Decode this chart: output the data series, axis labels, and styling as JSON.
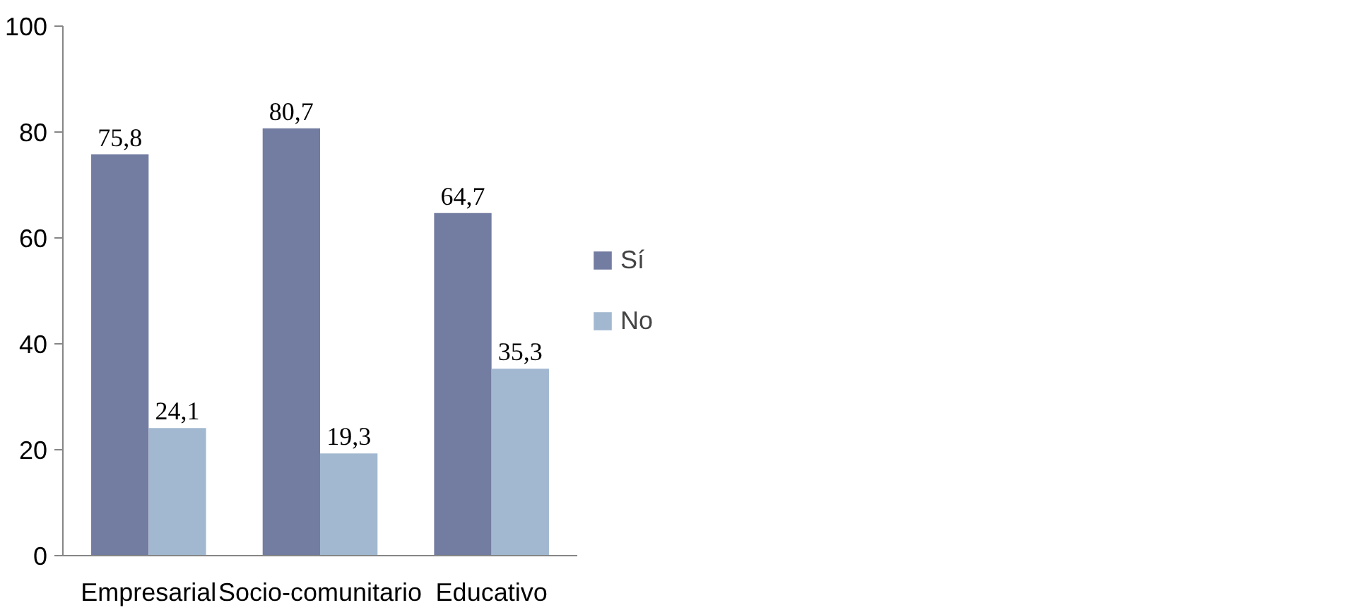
{
  "chart_data": {
    "type": "bar",
    "categories": [
      "Empresarial",
      "Socio-comunitario",
      "Educativo"
    ],
    "series": [
      {
        "name": "Sí",
        "color": "#737ca1",
        "values": [
          75.8,
          80.7,
          64.7
        ],
        "value_labels": [
          "75,8",
          "80,7",
          "64,7"
        ]
      },
      {
        "name": "No",
        "color": "#a2b8d0",
        "values": [
          24.1,
          19.3,
          35.3
        ],
        "value_labels": [
          "24,1",
          "19,3",
          "35,3"
        ]
      }
    ],
    "ylim": [
      0,
      100
    ],
    "yticks": [
      0,
      20,
      40,
      60,
      80,
      100
    ],
    "grid": false,
    "legend": "right"
  }
}
